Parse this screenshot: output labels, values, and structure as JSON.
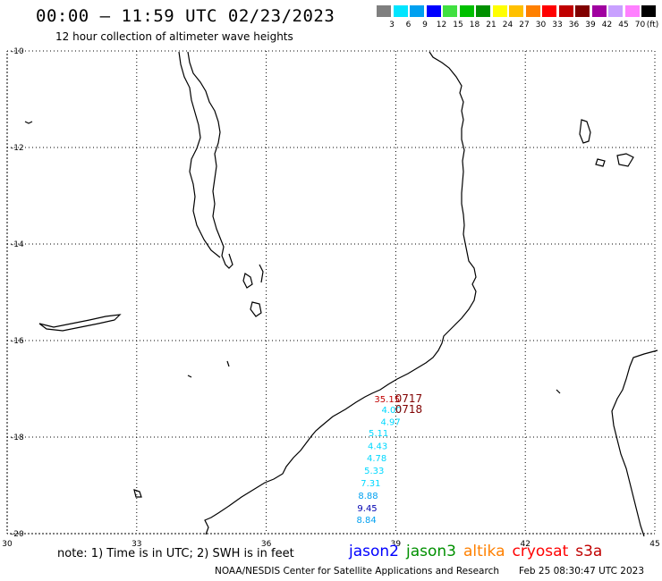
{
  "title": "00:00 – 11:59 UTC 02/23/2023",
  "subtitle": "12 hour collection of altimeter wave heights",
  "scale": {
    "unit": "(ft)",
    "bins": [
      {
        "label": "3",
        "color": "#7f7f7f"
      },
      {
        "label": "6",
        "color": "#00e5ff"
      },
      {
        "label": "9",
        "color": "#00a0f0"
      },
      {
        "label": "12",
        "color": "#0000ff"
      },
      {
        "label": "15",
        "color": "#40e040"
      },
      {
        "label": "18",
        "color": "#00c000"
      },
      {
        "label": "21",
        "color": "#009000"
      },
      {
        "label": "24",
        "color": "#ffff00"
      },
      {
        "label": "27",
        "color": "#ffc000"
      },
      {
        "label": "30",
        "color": "#ff8000"
      },
      {
        "label": "33",
        "color": "#ff0000"
      },
      {
        "label": "36",
        "color": "#c00000"
      },
      {
        "label": "39",
        "color": "#800000"
      },
      {
        "label": "42",
        "color": "#a000a0"
      },
      {
        "label": "45",
        "color": "#c8a0ff"
      },
      {
        "label": "70",
        "color": "#ff80ff"
      },
      {
        "label": "",
        "color": "#000000"
      }
    ]
  },
  "map": {
    "lon_range": [
      30,
      45
    ],
    "lat_range": [
      -20,
      -10
    ],
    "lon_ticks": [
      "30",
      "33",
      "36",
      "39",
      "42",
      "45"
    ],
    "lat_ticks": [
      "-10",
      "-12",
      "-14",
      "-16",
      "-18",
      "-20"
    ],
    "grid": "dotted"
  },
  "observations": [
    {
      "value": "35.15",
      "lon": 38.8,
      "lat": -17.28,
      "color": "#c00000"
    },
    {
      "value": "4.00",
      "lon": 38.9,
      "lat": -17.5,
      "color": "#00d8ff"
    },
    {
      "value": "4.97",
      "lon": 38.88,
      "lat": -17.75,
      "color": "#00d8ff"
    },
    {
      "value": "5.11",
      "lon": 38.6,
      "lat": -17.98,
      "color": "#00d8ff"
    },
    {
      "value": "4.43",
      "lon": 38.58,
      "lat": -18.25,
      "color": "#00d8ff"
    },
    {
      "value": "4.78",
      "lon": 38.56,
      "lat": -18.5,
      "color": "#00d8ff"
    },
    {
      "value": "5.33",
      "lon": 38.5,
      "lat": -18.76,
      "color": "#00d8ff"
    },
    {
      "value": "7.31",
      "lon": 38.42,
      "lat": -19.02,
      "color": "#00d8ff"
    },
    {
      "value": "8.88",
      "lon": 38.36,
      "lat": -19.28,
      "color": "#00a0f0"
    },
    {
      "value": "9.45",
      "lon": 38.34,
      "lat": -19.54,
      "color": "#0000b0"
    },
    {
      "value": "8.84",
      "lon": 38.32,
      "lat": -19.78,
      "color": "#00a0f0"
    }
  ],
  "time_labels": [
    {
      "text": "0717",
      "lon": 39.3,
      "lat": -17.28,
      "color": "#800000"
    },
    {
      "text": "0718",
      "lon": 39.3,
      "lat": -17.5,
      "color": "#800000"
    }
  ],
  "note": "note:  1) Time is in UTC; 2) SWH is in feet",
  "satellites": [
    {
      "name": "jason2",
      "color": "#0000ff"
    },
    {
      "name": "jason3",
      "color": "#009000"
    },
    {
      "name": "altika",
      "color": "#ff8000"
    },
    {
      "name": "cryosat",
      "color": "#ff0000"
    },
    {
      "name": "s3a",
      "color": "#c00000"
    }
  ],
  "footer": "NOAA/NESDIS Center for Satellite Applications and Research",
  "footer_date": "Feb 25 08:30:47 UTC 2023"
}
